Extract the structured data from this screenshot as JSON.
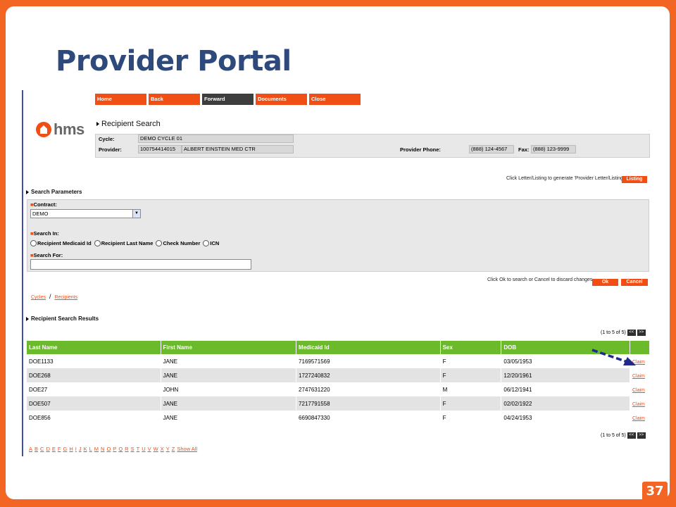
{
  "slide": {
    "title": "Provider Portal",
    "page_number": "37"
  },
  "nav": [
    "Home",
    "Back",
    "Forward",
    "Documents",
    "Close"
  ],
  "logo_text": "hms",
  "recipient_search": {
    "title": "Recipient Search",
    "cycle_label": "Cycle:",
    "cycle_value": "DEMO CYCLE 01",
    "provider_label": "Provider:",
    "provider_id": "100754414015",
    "provider_name": "ALBERT EINSTEIN MED CTR",
    "phone_label": "Provider Phone:",
    "phone_value": "(888) 124-4567",
    "fax_label": "Fax:",
    "fax_value": "(888) 123-9999"
  },
  "listing": {
    "hint": "Click Letter/Listing to generate 'Provider Letter/Listing'",
    "button": "Listing"
  },
  "search_params": {
    "title": "Search Parameters",
    "contract_label": "Contract:",
    "contract_value": "DEMO",
    "search_in_label": "Search In:",
    "search_in_options": [
      "Recipient Medicaid Id",
      "Recipient Last Name",
      "Check Number",
      "ICN"
    ],
    "search_for_label": "Search For:",
    "search_for_value": ""
  },
  "actions": {
    "hint": "Click Ok to search or Cancel to discard changes",
    "ok": "Ok",
    "cancel": "Cancel"
  },
  "breadcrumb": {
    "cycles": "Cycles",
    "sep": "/",
    "recipients": "Recipients"
  },
  "results": {
    "title": "Recipient Search Results",
    "pager_text": "(1 to 5 of 5)",
    "prev": "<<",
    "next": ">>",
    "columns": [
      "Last Name",
      "First Name",
      "Medicaid Id",
      "Sex",
      "DOB",
      ""
    ],
    "rows": [
      {
        "last": "DOE1133",
        "first": "JANE",
        "medicaid": "7169571569",
        "sex": "F",
        "dob": "03/05/1953",
        "action": "Claim"
      },
      {
        "last": "DOE268",
        "first": "JANE",
        "medicaid": "1727240832",
        "sex": "F",
        "dob": "12/20/1961",
        "action": "Claim"
      },
      {
        "last": "DOE27",
        "first": "JOHN",
        "medicaid": "2747631220",
        "sex": "M",
        "dob": "06/12/1941",
        "action": "Claim"
      },
      {
        "last": "DOE507",
        "first": "JANE",
        "medicaid": "7217791558",
        "sex": "F",
        "dob": "02/02/1922",
        "action": "Claim"
      },
      {
        "last": "DOE856",
        "first": "JANE",
        "medicaid": "6690847330",
        "sex": "F",
        "dob": "04/24/1953",
        "action": "Claim"
      }
    ]
  },
  "alphabet": [
    "A",
    "B",
    "C",
    "D",
    "E",
    "F",
    "G",
    "H",
    "I",
    "J",
    "K",
    "L",
    "M",
    "N",
    "O",
    "P",
    "Q",
    "R",
    "S",
    "T",
    "U",
    "V",
    "W",
    "X",
    "Y",
    "Z",
    "Show All"
  ],
  "colors": {
    "frame_orange": "#f26522",
    "title_blue": "#2e4a7d",
    "header_green": "#6aba2c",
    "arrow_navy": "#1f2a8c"
  }
}
